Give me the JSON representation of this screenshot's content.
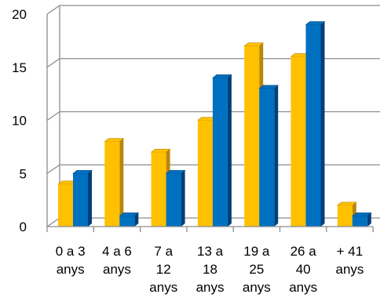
{
  "chart_data": {
    "type": "bar",
    "title": "",
    "xlabel": "",
    "ylabel": "",
    "ylim": [
      0,
      20
    ],
    "y_ticks": [
      "0",
      "5",
      "10",
      "15",
      "20"
    ],
    "grid": true,
    "legend": "none",
    "three_d": true,
    "categories": [
      [
        "0 a 3",
        "anys"
      ],
      [
        "4 a 6",
        "anys"
      ],
      [
        "7 a",
        "12",
        "anys"
      ],
      [
        "13 a",
        "18",
        "anys"
      ],
      [
        "19 a",
        "25",
        "anys"
      ],
      [
        "26 a",
        "40",
        "anys"
      ],
      [
        "+ 41",
        "anys"
      ]
    ],
    "series": [
      {
        "color": "#FFC000",
        "side_color": "#B8860B",
        "values": [
          4,
          8,
          7,
          10,
          17,
          16,
          2
        ]
      },
      {
        "color": "#0070C0",
        "side_color": "#003F7A",
        "values": [
          5,
          1,
          5,
          14,
          13,
          19,
          1
        ]
      }
    ]
  }
}
